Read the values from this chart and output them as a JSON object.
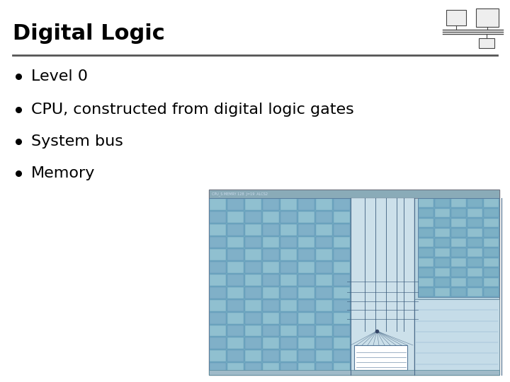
{
  "title": "Digital Logic",
  "bullet_points": [
    "Level 0",
    "CPU, constructed from digital logic gates",
    "System bus",
    "Memory"
  ],
  "bg_color": "#ffffff",
  "title_color": "#000000",
  "title_fontsize": 22,
  "bullet_fontsize": 16,
  "separator_color": "#555555",
  "icon_color": "#555555",
  "diagram_bg": "#b8d4e0",
  "diagram_dark": "#6fa8c0",
  "diagram_light": "#c8dde8",
  "diagram_mid": "#a0c4d4"
}
